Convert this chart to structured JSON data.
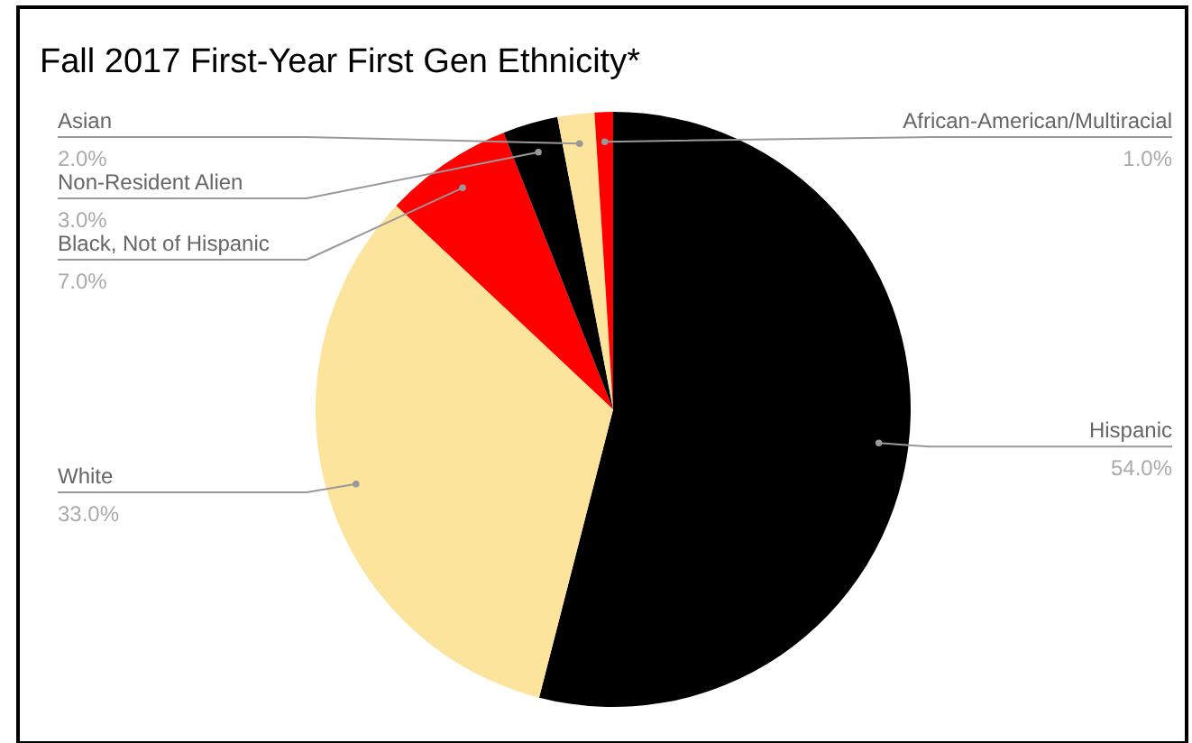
{
  "chart_data": {
    "type": "pie",
    "title": "Fall 2017 First-Year First Gen Ethnicity*",
    "categories": [
      "Hispanic",
      "White",
      "Black, Not of Hispanic",
      "Non-Resident Alien",
      "Asian",
      "African-American/Multiracial"
    ],
    "values": [
      54,
      33,
      7,
      3,
      2,
      1
    ],
    "value_labels": [
      "54.0%",
      "33.0%",
      "7.0%",
      "3.0%",
      "2.0%",
      "1.0%"
    ],
    "colors": [
      "#000000",
      "#fde49c",
      "#ff0000",
      "#000000",
      "#fde49c",
      "#ff0000"
    ],
    "legend": false
  }
}
